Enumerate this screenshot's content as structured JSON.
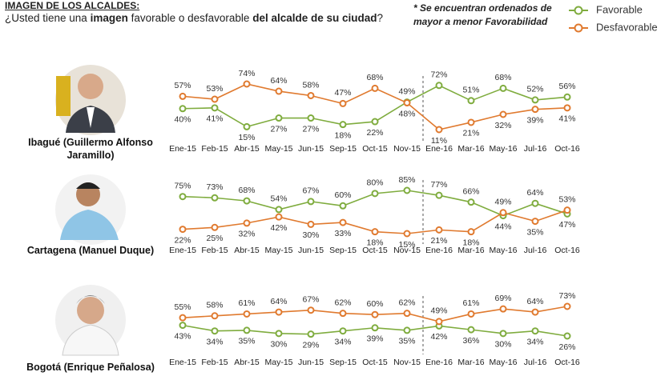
{
  "header": {
    "title": "IMAGEN DE LOS ALCALDES:",
    "question_parts": [
      "¿Usted tiene una ",
      "imagen",
      " favorable o desfavorable ",
      "del alcalde de su ciudad",
      "?"
    ],
    "note": "* Se encuentran ordenados de mayor a menor Favorabilidad"
  },
  "chart_data": [
    {
      "type": "line",
      "title": "Ibagué (Guillermo Alfonso Jaramillo)",
      "categories": [
        "Ene-15",
        "Feb-15",
        "Abr-15",
        "May-15",
        "Jun-15",
        "Sep-15",
        "Oct-15",
        "Nov-15",
        "Ene-16",
        "Mar-16",
        "May-16",
        "Jul-16",
        "Oct-16"
      ],
      "series": [
        {
          "name": "Favorable",
          "color": "#7fac3e",
          "values": [
            40,
            41,
            15,
            27,
            27,
            18,
            22,
            49,
            72,
            51,
            68,
            52,
            56
          ],
          "value_labels": [
            "40%",
            "41%",
            "15%",
            "27%",
            "27%",
            "18%",
            "22%",
            "49%",
            "72%",
            "51%",
            "68%",
            "52%",
            "56%"
          ]
        },
        {
          "name": "Desfavorable",
          "color": "#e07a2f",
          "values": [
            57,
            53,
            74,
            64,
            58,
            47,
            68,
            48,
            11,
            21,
            32,
            39,
            41
          ],
          "value_labels": [
            "57%",
            "53%",
            "74%",
            "64%",
            "58%",
            "47%",
            "68%",
            "48%",
            "11%",
            "21%",
            "32%",
            "39%",
            "41%"
          ]
        }
      ]
    },
    {
      "type": "line",
      "title": "Cartagena (Manuel Duque)",
      "categories": [
        "Ene-15",
        "Feb-15",
        "Abr-15",
        "May-15",
        "Jun-15",
        "Sep-15",
        "Oct-15",
        "Nov-15",
        "Ene-16",
        "Mar-16",
        "May-16",
        "Jul-16",
        "Oct-16"
      ],
      "series": [
        {
          "name": "Favorable",
          "color": "#7fac3e",
          "values": [
            75,
            73,
            68,
            54,
            67,
            60,
            80,
            85,
            77,
            66,
            44,
            64,
            47
          ],
          "value_labels": [
            "75%",
            "73%",
            "68%",
            "54%",
            "67%",
            "60%",
            "80%",
            "85%",
            "77%",
            "66%",
            "44%",
            "64%",
            "47%"
          ]
        },
        {
          "name": "Desfavorable",
          "color": "#e07a2f",
          "values": [
            22,
            25,
            32,
            42,
            30,
            33,
            18,
            15,
            21,
            18,
            49,
            35,
            53
          ],
          "value_labels": [
            "22%",
            "25%",
            "32%",
            "42%",
            "30%",
            "33%",
            "18%",
            "15%",
            "21%",
            "18%",
            "49%",
            "35%",
            "53%"
          ]
        }
      ]
    },
    {
      "type": "line",
      "title": "Bogotá (Enrique Peñalosa)",
      "categories": [
        "Ene-15",
        "Feb-15",
        "Abr-15",
        "May-15",
        "Jun-15",
        "Sep-15",
        "Oct-15",
        "Nov-15",
        "Ene-16",
        "Mar-16",
        "May-16",
        "Jul-16",
        "Oct-16"
      ],
      "series": [
        {
          "name": "Favorable",
          "color": "#7fac3e",
          "values": [
            43,
            34,
            35,
            30,
            29,
            34,
            39,
            35,
            42,
            36,
            30,
            34,
            26
          ],
          "value_labels": [
            "43%",
            "34%",
            "35%",
            "30%",
            "29%",
            "34%",
            "39%",
            "35%",
            "42%",
            "36%",
            "30%",
            "34%",
            "26%"
          ]
        },
        {
          "name": "Desfavorable",
          "color": "#e07a2f",
          "values": [
            55,
            58,
            61,
            64,
            67,
            62,
            60,
            62,
            49,
            61,
            69,
            64,
            73
          ],
          "value_labels": [
            "55%",
            "58%",
            "61%",
            "64%",
            "67%",
            "62%",
            "60%",
            "62%",
            "49%",
            "61%",
            "69%",
            "64%",
            "73%"
          ]
        }
      ]
    }
  ]
}
